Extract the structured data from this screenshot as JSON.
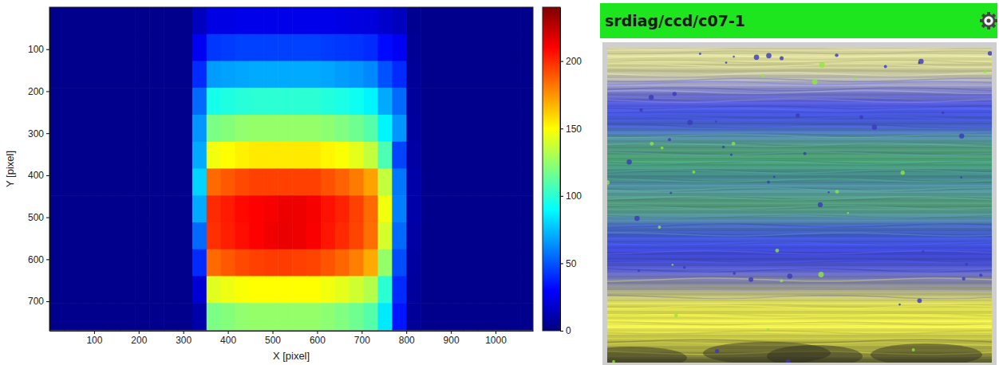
{
  "chart_data": {
    "type": "heatmap",
    "x_label": "X [pixel]",
    "y_label": "Y [pixel]",
    "x": [
      16,
      48,
      80,
      112,
      144,
      176,
      208,
      240,
      272,
      304,
      336,
      368,
      400,
      432,
      464,
      496,
      528,
      560,
      592,
      624,
      656,
      688,
      720,
      752,
      784,
      816,
      848,
      880,
      912,
      944,
      976,
      1008,
      1040,
      1072
    ],
    "y": [
      32,
      96,
      160,
      224,
      288,
      352,
      416,
      480,
      544,
      608,
      672,
      736
    ],
    "cells": [
      [
        3,
        3,
        3,
        3,
        3,
        3,
        3,
        3,
        3,
        3,
        15,
        24,
        24,
        25,
        25,
        25,
        25,
        25,
        25,
        25,
        24,
        23,
        22,
        18,
        15,
        4,
        3,
        3,
        3,
        3,
        3,
        3,
        3,
        3
      ],
      [
        3,
        3,
        3,
        3,
        3,
        3,
        3,
        3,
        3,
        3,
        27,
        43,
        44,
        45,
        45,
        45,
        45,
        45,
        45,
        44,
        43,
        42,
        40,
        32,
        27,
        5,
        3,
        3,
        3,
        3,
        3,
        3,
        3,
        3
      ],
      [
        3,
        3,
        3,
        3,
        3,
        3,
        3,
        3,
        3,
        3,
        40,
        67,
        68,
        69,
        70,
        70,
        70,
        70,
        70,
        69,
        67,
        65,
        62,
        49,
        40,
        6,
        3,
        3,
        3,
        3,
        3,
        3,
        3,
        3
      ],
      [
        3,
        3,
        3,
        3,
        3,
        3,
        3,
        3,
        3,
        3,
        55,
        95,
        97,
        99,
        100,
        100,
        100,
        100,
        100,
        98,
        96,
        93,
        88,
        70,
        55,
        7,
        3,
        3,
        3,
        3,
        3,
        3,
        3,
        3
      ],
      [
        3,
        3,
        3,
        3,
        3,
        3,
        3,
        3,
        3,
        3,
        65,
        119,
        121,
        124,
        125,
        125,
        125,
        125,
        125,
        123,
        120,
        116,
        110,
        88,
        65,
        8,
        3,
        3,
        3,
        3,
        3,
        3,
        3,
        3
      ],
      [
        3,
        3,
        3,
        3,
        3,
        3,
        3,
        3,
        3,
        3,
        70,
        147,
        150,
        153,
        155,
        155,
        155,
        155,
        155,
        152,
        149,
        144,
        136,
        108,
        46,
        9,
        3,
        3,
        3,
        3,
        3,
        3,
        3,
        3
      ],
      [
        3,
        3,
        3,
        3,
        3,
        3,
        3,
        3,
        3,
        3,
        80,
        185,
        189,
        193,
        195,
        195,
        195,
        195,
        195,
        191,
        187,
        181,
        172,
        136,
        58,
        10,
        3,
        3,
        3,
        3,
        3,
        3,
        3,
        3
      ],
      [
        3,
        3,
        3,
        3,
        3,
        3,
        3,
        3,
        3,
        3,
        70,
        200,
        204,
        208,
        210,
        212,
        214,
        214,
        212,
        206,
        202,
        195,
        185,
        147,
        60,
        10,
        3,
        3,
        3,
        3,
        3,
        3,
        3,
        3
      ],
      [
        3,
        3,
        3,
        3,
        3,
        3,
        3,
        3,
        3,
        3,
        55,
        199,
        203,
        207,
        210,
        213,
        215,
        214,
        211,
        205,
        200,
        194,
        184,
        140,
        55,
        9,
        3,
        3,
        3,
        3,
        3,
        3,
        3,
        3
      ],
      [
        3,
        3,
        3,
        3,
        3,
        3,
        3,
        3,
        3,
        3,
        40,
        185,
        189,
        193,
        195,
        196,
        196,
        195,
        194,
        190,
        186,
        180,
        170,
        125,
        48,
        8,
        3,
        3,
        3,
        3,
        3,
        3,
        3,
        3
      ],
      [
        3,
        3,
        3,
        3,
        3,
        3,
        3,
        3,
        3,
        3,
        20,
        143,
        146,
        149,
        150,
        150,
        150,
        150,
        150,
        147,
        144,
        139,
        132,
        100,
        40,
        7,
        3,
        3,
        3,
        3,
        3,
        3,
        3,
        3
      ],
      [
        3,
        3,
        3,
        3,
        3,
        3,
        3,
        3,
        3,
        3,
        10,
        119,
        121,
        124,
        125,
        125,
        125,
        125,
        125,
        123,
        120,
        116,
        110,
        85,
        35,
        6,
        3,
        3,
        3,
        3,
        3,
        3,
        3,
        3
      ]
    ],
    "xlim": [
      0,
      1084
    ],
    "ylim": [
      770,
      0
    ],
    "xticks": [
      100,
      200,
      300,
      400,
      500,
      600,
      700,
      800,
      900,
      1000
    ],
    "yticks": [
      100,
      200,
      300,
      400,
      500,
      600,
      700
    ],
    "colorbar": {
      "lim": [
        0,
        240
      ],
      "ticks": [
        0,
        50,
        100,
        150,
        200
      ]
    }
  },
  "ccd_view": {
    "title": "srdiag/ccd/c07-1"
  }
}
